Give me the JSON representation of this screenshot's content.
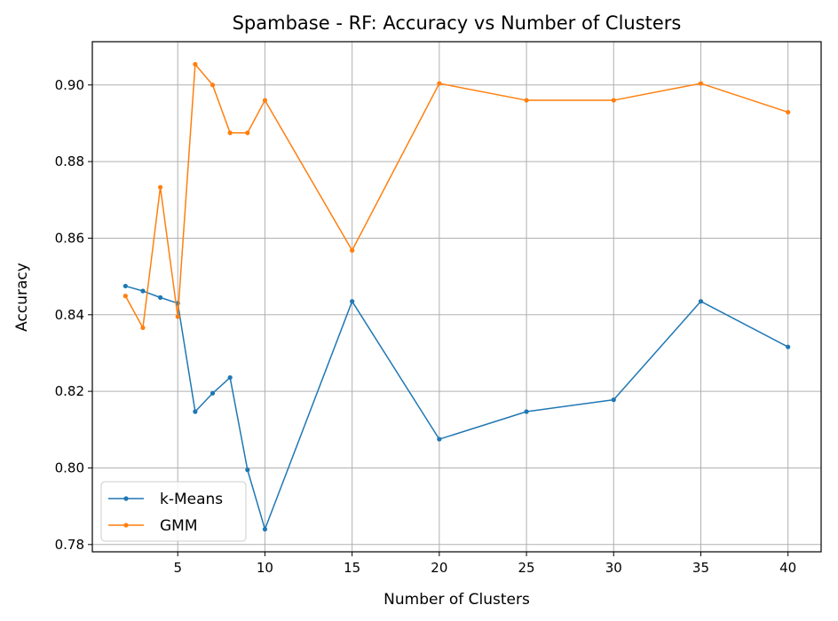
{
  "chart_data": {
    "type": "line",
    "title": "Spambase - RF: Accuracy vs Number of Clusters",
    "xlabel": "Number of Clusters",
    "ylabel": "Accuracy",
    "x": [
      2,
      3,
      4,
      5,
      6,
      7,
      8,
      9,
      10,
      15,
      20,
      25,
      30,
      35,
      40
    ],
    "xticks": [
      5,
      10,
      15,
      20,
      25,
      30,
      35,
      40
    ],
    "xtick_labels": [
      "5",
      "10",
      "15",
      "20",
      "25",
      "30",
      "35",
      "40"
    ],
    "yticks": [
      0.78,
      0.8,
      0.82,
      0.84,
      0.86,
      0.88,
      0.9
    ],
    "ytick_labels": [
      "0.78",
      "0.80",
      "0.82",
      "0.84",
      "0.86",
      "0.88",
      "0.90"
    ],
    "xlim": [
      0.1,
      41.9
    ],
    "ylim": [
      0.7781,
      0.9113
    ],
    "grid": true,
    "legend_position": "lower-left",
    "series": [
      {
        "name": "k-Means",
        "color": "#1f77b4",
        "values": [
          0.8475,
          0.8462,
          0.8445,
          0.843,
          0.8147,
          0.8195,
          0.8236,
          0.7995,
          0.784,
          0.8435,
          0.8075,
          0.8147,
          0.8178,
          0.8435,
          0.8316
        ]
      },
      {
        "name": "GMM",
        "color": "#ff7f0e",
        "values": [
          0.8449,
          0.8366,
          0.8733,
          0.8395,
          0.9054,
          0.9,
          0.8875,
          0.8875,
          0.896,
          0.8568,
          0.9004,
          0.896,
          0.896,
          0.9004,
          0.8929
        ]
      }
    ]
  }
}
